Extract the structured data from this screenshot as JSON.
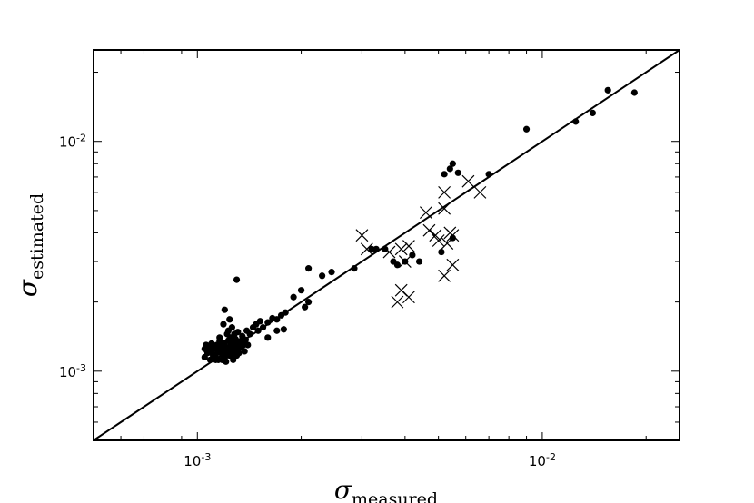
{
  "chart_data": {
    "type": "scatter",
    "title": "",
    "xlabel": "σ",
    "xlabel_subscript": "measured",
    "ylabel": "σ",
    "ylabel_subscript": "estimated",
    "xscale": "log",
    "yscale": "log",
    "xlim": [
      0.0005,
      0.025
    ],
    "ylim": [
      0.0005,
      0.025
    ],
    "grid": false,
    "legend": "none",
    "x_ticks": [
      {
        "value": 0.001,
        "base": "10",
        "exp": "-3"
      },
      {
        "value": 0.01,
        "base": "10",
        "exp": "-2"
      }
    ],
    "y_ticks": [
      {
        "value": 0.001,
        "base": "10",
        "exp": "-3"
      },
      {
        "value": 0.01,
        "base": "10",
        "exp": "-2"
      }
    ],
    "reference_line": {
      "type": "identity",
      "x": [
        0.0005,
        0.025
      ],
      "y": [
        0.0005,
        0.025
      ],
      "color": "#000000"
    },
    "series": [
      {
        "marker": "dot",
        "color": "#000000",
        "points": [
          [
            0.00105,
            0.00125
          ],
          [
            0.00106,
            0.0013
          ],
          [
            0.00107,
            0.0012
          ],
          [
            0.00105,
            0.00115
          ],
          [
            0.00108,
            0.00128
          ],
          [
            0.0011,
            0.0012
          ],
          [
            0.0011,
            0.00132
          ],
          [
            0.00111,
            0.00115
          ],
          [
            0.00112,
            0.00126
          ],
          [
            0.00113,
            0.00118
          ],
          [
            0.00114,
            0.0013
          ],
          [
            0.00115,
            0.00122
          ],
          [
            0.00115,
            0.00112
          ],
          [
            0.00116,
            0.00135
          ],
          [
            0.00117,
            0.00128
          ],
          [
            0.00118,
            0.00118
          ],
          [
            0.00119,
            0.00124
          ],
          [
            0.0012,
            0.00132
          ],
          [
            0.0012,
            0.00114
          ],
          [
            0.00121,
            0.00127
          ],
          [
            0.00122,
            0.0012
          ],
          [
            0.00122,
            0.00145
          ],
          [
            0.00123,
            0.0015
          ],
          [
            0.00123,
            0.00136
          ],
          [
            0.00124,
            0.00125
          ],
          [
            0.00124,
            0.00117
          ],
          [
            0.00125,
            0.0014
          ],
          [
            0.00125,
            0.0013
          ],
          [
            0.00126,
            0.00122
          ],
          [
            0.00126,
            0.00155
          ],
          [
            0.00127,
            0.00135
          ],
          [
            0.00127,
            0.00118
          ],
          [
            0.00128,
            0.00128
          ],
          [
            0.00128,
            0.00145
          ],
          [
            0.00129,
            0.00123
          ],
          [
            0.00129,
            0.00138
          ],
          [
            0.0013,
            0.00132
          ],
          [
            0.0013,
            0.00117
          ],
          [
            0.00131,
            0.00127
          ],
          [
            0.00131,
            0.00148
          ],
          [
            0.00132,
            0.0012
          ],
          [
            0.00133,
            0.00135
          ],
          [
            0.00134,
            0.00128
          ],
          [
            0.00135,
            0.00142
          ],
          [
            0.00136,
            0.0013
          ],
          [
            0.00137,
            0.00122
          ],
          [
            0.00138,
            0.00137
          ],
          [
            0.00139,
            0.0015
          ],
          [
            0.0014,
            0.0013
          ],
          [
            0.00142,
            0.00145
          ],
          [
            0.00145,
            0.00155
          ],
          [
            0.00148,
            0.0016
          ],
          [
            0.0015,
            0.0015
          ],
          [
            0.00152,
            0.00165
          ],
          [
            0.00155,
            0.00155
          ],
          [
            0.0016,
            0.00163
          ],
          [
            0.00165,
            0.0017
          ],
          [
            0.0017,
            0.00168
          ],
          [
            0.00175,
            0.00175
          ],
          [
            0.0012,
            0.00185
          ],
          [
            0.00119,
            0.0016
          ],
          [
            0.00118,
            0.00112
          ],
          [
            0.00116,
            0.0014
          ],
          [
            0.00114,
            0.00124
          ],
          [
            0.00113,
            0.00112
          ],
          [
            0.0011,
            0.00126
          ],
          [
            0.00109,
            0.00112
          ],
          [
            0.00121,
            0.0011
          ],
          [
            0.00124,
            0.00168
          ],
          [
            0.00127,
            0.00112
          ],
          [
            0.0013,
            0.0025
          ],
          [
            0.0016,
            0.0014
          ],
          [
            0.0017,
            0.0015
          ],
          [
            0.00178,
            0.00152
          ],
          [
            0.0018,
            0.0018
          ],
          [
            0.0019,
            0.0021
          ],
          [
            0.002,
            0.00225
          ],
          [
            0.00205,
            0.0019
          ],
          [
            0.0021,
            0.002
          ],
          [
            0.0021,
            0.0028
          ],
          [
            0.0023,
            0.0026
          ],
          [
            0.00245,
            0.0027
          ],
          [
            0.00285,
            0.0028
          ],
          [
            0.0032,
            0.0034
          ],
          [
            0.0033,
            0.0034
          ],
          [
            0.0035,
            0.0034
          ],
          [
            0.0037,
            0.003
          ],
          [
            0.0038,
            0.0029
          ],
          [
            0.004,
            0.003
          ],
          [
            0.0042,
            0.0032
          ],
          [
            0.0044,
            0.003
          ],
          [
            0.0051,
            0.0033
          ],
          [
            0.0052,
            0.0072
          ],
          [
            0.0054,
            0.0076
          ],
          [
            0.0055,
            0.008
          ],
          [
            0.0057,
            0.0073
          ],
          [
            0.0055,
            0.0038
          ],
          [
            0.007,
            0.0072
          ],
          [
            0.009,
            0.0113
          ],
          [
            0.0125,
            0.0122
          ],
          [
            0.014,
            0.0133
          ],
          [
            0.0155,
            0.0167
          ],
          [
            0.0185,
            0.0163
          ]
        ]
      },
      {
        "marker": "x",
        "color": "#000000",
        "points": [
          [
            0.003,
            0.0039
          ],
          [
            0.0031,
            0.0034
          ],
          [
            0.0036,
            0.0033
          ],
          [
            0.0039,
            0.0034
          ],
          [
            0.004,
            0.003
          ],
          [
            0.0041,
            0.0035
          ],
          [
            0.0038,
            0.002
          ],
          [
            0.0039,
            0.00225
          ],
          [
            0.0041,
            0.0021
          ],
          [
            0.0046,
            0.0049
          ],
          [
            0.0047,
            0.0041
          ],
          [
            0.0049,
            0.0039
          ],
          [
            0.005,
            0.0037
          ],
          [
            0.0052,
            0.0051
          ],
          [
            0.0052,
            0.006
          ],
          [
            0.0053,
            0.0036
          ],
          [
            0.0054,
            0.004
          ],
          [
            0.0055,
            0.0039
          ],
          [
            0.0052,
            0.0026
          ],
          [
            0.0055,
            0.0029
          ],
          [
            0.0061,
            0.0067
          ],
          [
            0.0066,
            0.006
          ]
        ]
      }
    ]
  }
}
